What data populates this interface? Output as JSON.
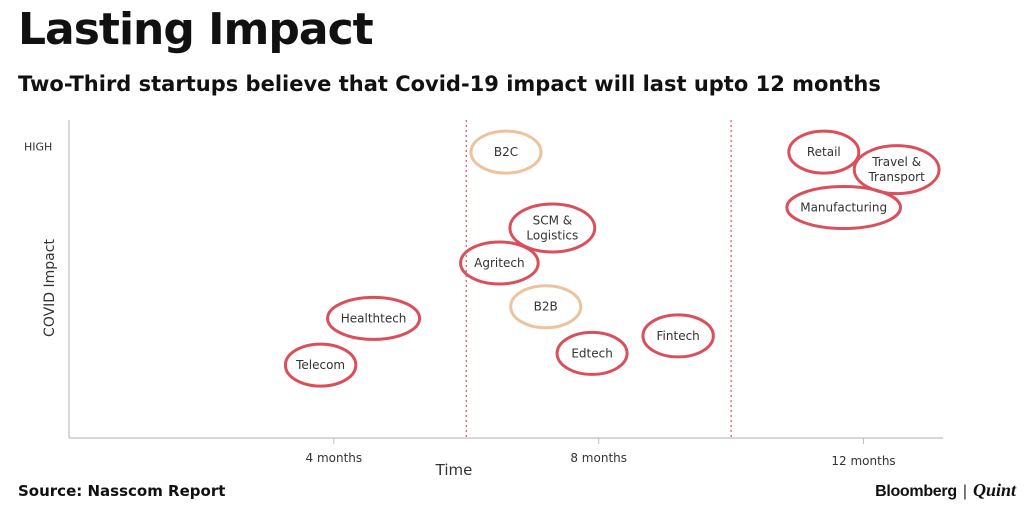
{
  "header": {
    "title": "Lasting Impact",
    "subtitle": "Two-Third startups believe that Covid-19 impact will last upto 12 months"
  },
  "footer": {
    "source": "Source: Nasscom Report",
    "brand_primary": "Bloomberg",
    "brand_separator": "|",
    "brand_secondary": "Quint"
  },
  "chart_data": {
    "type": "scatter",
    "title": "Lasting Impact",
    "subtitle": "Two-Third startups believe that Covid-19 impact will last upto 12 months",
    "xlabel": "Time",
    "ylabel": "COVID Impact",
    "x_ticks": [
      {
        "value": 4,
        "label": "4 months"
      },
      {
        "value": 8,
        "label": "8 months"
      },
      {
        "value": 12,
        "label": "12 months"
      }
    ],
    "y_ticks": [
      {
        "value": 10,
        "label": "HIGH"
      }
    ],
    "xlim": [
      0,
      13.2
    ],
    "ylim": [
      0,
      10.9
    ],
    "dividers": [
      6,
      10
    ],
    "grid": false,
    "colors": {
      "high": "#d9505a",
      "medium": "#edc39e",
      "divider": "#d9505a",
      "axis": "#bfbfbf",
      "text": "#333333"
    },
    "points": [
      {
        "label": "B2C",
        "x": 6.6,
        "y": 9.8,
        "category": "medium"
      },
      {
        "label": "SCM &\nLogistics",
        "x": 7.3,
        "y": 7.2,
        "category": "high"
      },
      {
        "label": "Agritech",
        "x": 6.5,
        "y": 6.0,
        "category": "high"
      },
      {
        "label": "B2B",
        "x": 7.2,
        "y": 4.5,
        "category": "medium"
      },
      {
        "label": "Edtech",
        "x": 7.9,
        "y": 2.9,
        "category": "high"
      },
      {
        "label": "Fintech",
        "x": 9.2,
        "y": 3.5,
        "category": "high"
      },
      {
        "label": "Healthtech",
        "x": 4.6,
        "y": 4.1,
        "category": "high"
      },
      {
        "label": "Telecom",
        "x": 3.8,
        "y": 2.5,
        "category": "high"
      },
      {
        "label": "Retail",
        "x": 11.4,
        "y": 9.8,
        "category": "high"
      },
      {
        "label": "Travel &\nTransport",
        "x": 12.5,
        "y": 9.2,
        "category": "high"
      },
      {
        "label": "Manufacturing",
        "x": 11.7,
        "y": 7.9,
        "category": "high"
      }
    ]
  }
}
